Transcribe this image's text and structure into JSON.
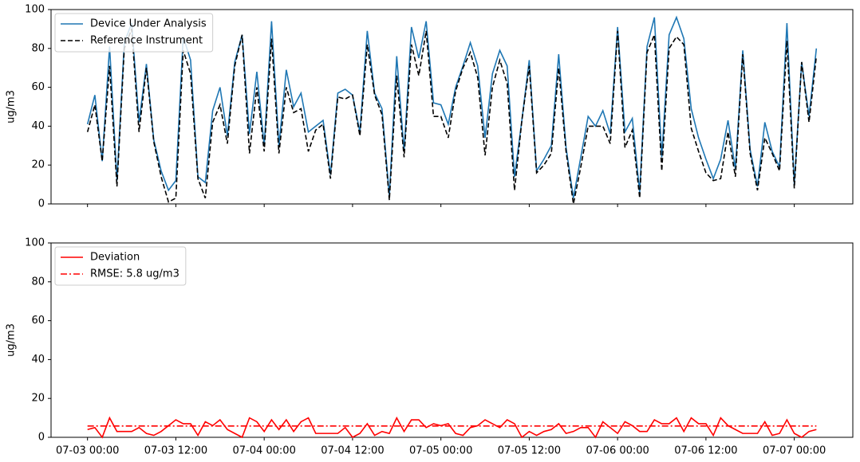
{
  "chart_data": [
    {
      "type": "line",
      "ylabel": "ug/m3",
      "ylim": [
        0,
        100
      ],
      "yticks": [
        0,
        20,
        40,
        60,
        80,
        100
      ],
      "legend": "upper left",
      "x": [
        "07-03 00:00",
        "07-03 01:00",
        "07-03 02:00",
        "07-03 03:00",
        "07-03 04:00",
        "07-03 05:00",
        "07-03 06:00",
        "07-03 07:00",
        "07-03 08:00",
        "07-03 09:00",
        "07-03 10:00",
        "07-03 11:00",
        "07-03 12:00",
        "07-03 13:00",
        "07-03 14:00",
        "07-03 15:00",
        "07-03 16:00",
        "07-03 17:00",
        "07-03 18:00",
        "07-03 19:00",
        "07-03 20:00",
        "07-03 21:00",
        "07-03 22:00",
        "07-03 23:00",
        "07-04 00:00",
        "07-04 01:00",
        "07-04 02:00",
        "07-04 03:00",
        "07-04 04:00",
        "07-04 05:00",
        "07-04 06:00",
        "07-04 07:00",
        "07-04 08:00",
        "07-04 09:00",
        "07-04 10:00",
        "07-04 11:00",
        "07-04 12:00",
        "07-04 13:00",
        "07-04 14:00",
        "07-04 15:00",
        "07-04 16:00",
        "07-04 17:00",
        "07-04 18:00",
        "07-04 19:00",
        "07-04 20:00",
        "07-04 21:00",
        "07-04 22:00",
        "07-04 23:00",
        "07-05 00:00",
        "07-05 01:00",
        "07-05 02:00",
        "07-05 03:00",
        "07-05 04:00",
        "07-05 05:00",
        "07-05 06:00",
        "07-05 07:00",
        "07-05 08:00",
        "07-05 09:00",
        "07-05 10:00",
        "07-05 11:00",
        "07-05 12:00",
        "07-05 13:00",
        "07-05 14:00",
        "07-05 15:00",
        "07-05 16:00",
        "07-05 17:00",
        "07-05 18:00",
        "07-05 19:00",
        "07-05 20:00",
        "07-05 21:00",
        "07-05 22:00",
        "07-05 23:00",
        "07-06 00:00",
        "07-06 01:00",
        "07-06 02:00",
        "07-06 03:00",
        "07-06 04:00",
        "07-06 05:00",
        "07-06 06:00",
        "07-06 07:00",
        "07-06 08:00",
        "07-06 09:00",
        "07-06 10:00",
        "07-06 11:00",
        "07-06 12:00",
        "07-06 13:00",
        "07-06 14:00",
        "07-06 15:00",
        "07-06 16:00",
        "07-06 17:00",
        "07-06 18:00",
        "07-06 19:00",
        "07-06 20:00",
        "07-06 21:00",
        "07-06 22:00",
        "07-06 23:00",
        "07-07 00:00",
        "07-07 01:00",
        "07-07 02:00",
        "07-07 03:00"
      ],
      "series": [
        {
          "name": "Device Under Analysis",
          "color": "#1f77b4",
          "dash": "solid",
          "values": [
            41,
            56,
            22,
            81,
            12,
            83,
            93,
            42,
            72,
            33,
            17,
            7,
            12,
            86,
            74,
            14,
            11,
            48,
            60,
            35,
            73,
            87,
            36,
            68,
            30,
            94,
            30,
            69,
            50,
            57,
            37,
            40,
            43,
            15,
            57,
            59,
            56,
            37,
            89,
            57,
            49,
            4,
            76,
            27,
            91,
            75,
            94,
            52,
            51,
            41,
            60,
            71,
            83,
            71,
            34,
            67,
            79,
            71,
            14,
            43,
            74,
            17,
            23,
            30,
            77,
            29,
            3,
            24,
            45,
            40,
            48,
            36,
            91,
            37,
            44,
            6,
            81,
            96,
            24,
            87,
            96,
            85,
            49,
            34,
            23,
            13,
            23,
            43,
            18,
            79,
            28,
            9,
            42,
            27,
            19,
            93,
            10,
            73,
            45,
            80
          ]
        },
        {
          "name": "Reference Instrument",
          "color": "#000000",
          "dash": "dashed",
          "values": [
            37,
            51,
            22,
            71,
            9,
            80,
            90,
            37,
            70,
            32,
            14,
            1,
            3,
            79,
            67,
            13,
            3,
            42,
            51,
            31,
            71,
            87,
            26,
            60,
            27,
            85,
            26,
            60,
            47,
            49,
            27,
            38,
            41,
            13,
            55,
            54,
            56,
            35,
            82,
            56,
            46,
            2,
            66,
            24,
            82,
            66,
            89,
            45,
            45,
            34,
            58,
            70,
            78,
            65,
            25,
            60,
            74,
            62,
            7,
            43,
            71,
            16,
            20,
            26,
            70,
            27,
            0,
            19,
            40,
            40,
            40,
            31,
            89,
            29,
            38,
            3,
            78,
            87,
            17,
            80,
            86,
            82,
            39,
            27,
            16,
            12,
            13,
            37,
            14,
            77,
            26,
            7,
            34,
            26,
            17,
            84,
            8,
            73,
            42,
            76
          ]
        }
      ]
    },
    {
      "type": "line",
      "ylabel": "ug/m3",
      "ylim": [
        0,
        100
      ],
      "yticks": [
        0,
        20,
        40,
        60,
        80,
        100
      ],
      "legend": "upper left",
      "x": [
        "07-03 00:00",
        "07-03 01:00",
        "07-03 02:00",
        "07-03 03:00",
        "07-03 04:00",
        "07-03 05:00",
        "07-03 06:00",
        "07-03 07:00",
        "07-03 08:00",
        "07-03 09:00",
        "07-03 10:00",
        "07-03 11:00",
        "07-03 12:00",
        "07-03 13:00",
        "07-03 14:00",
        "07-03 15:00",
        "07-03 16:00",
        "07-03 17:00",
        "07-03 18:00",
        "07-03 19:00",
        "07-03 20:00",
        "07-03 21:00",
        "07-03 22:00",
        "07-03 23:00",
        "07-04 00:00",
        "07-04 01:00",
        "07-04 02:00",
        "07-04 03:00",
        "07-04 04:00",
        "07-04 05:00",
        "07-04 06:00",
        "07-04 07:00",
        "07-04 08:00",
        "07-04 09:00",
        "07-04 10:00",
        "07-04 11:00",
        "07-04 12:00",
        "07-04 13:00",
        "07-04 14:00",
        "07-04 15:00",
        "07-04 16:00",
        "07-04 17:00",
        "07-04 18:00",
        "07-04 19:00",
        "07-04 20:00",
        "07-04 21:00",
        "07-04 22:00",
        "07-04 23:00",
        "07-05 00:00",
        "07-05 01:00",
        "07-05 02:00",
        "07-05 03:00",
        "07-05 04:00",
        "07-05 05:00",
        "07-05 06:00",
        "07-05 07:00",
        "07-05 08:00",
        "07-05 09:00",
        "07-05 10:00",
        "07-05 11:00",
        "07-05 12:00",
        "07-05 13:00",
        "07-05 14:00",
        "07-05 15:00",
        "07-05 16:00",
        "07-05 17:00",
        "07-05 18:00",
        "07-05 19:00",
        "07-05 20:00",
        "07-05 21:00",
        "07-05 22:00",
        "07-05 23:00",
        "07-06 00:00",
        "07-06 01:00",
        "07-06 02:00",
        "07-06 03:00",
        "07-06 04:00",
        "07-06 05:00",
        "07-06 06:00",
        "07-06 07:00",
        "07-06 08:00",
        "07-06 09:00",
        "07-06 10:00",
        "07-06 11:00",
        "07-06 12:00",
        "07-06 13:00",
        "07-06 14:00",
        "07-06 15:00",
        "07-06 16:00",
        "07-06 17:00",
        "07-06 18:00",
        "07-06 19:00",
        "07-06 20:00",
        "07-06 21:00",
        "07-06 22:00",
        "07-06 23:00",
        "07-07 00:00",
        "07-07 01:00",
        "07-07 02:00",
        "07-07 03:00"
      ],
      "xticks": [
        "07-03 00:00",
        "07-03 12:00",
        "07-04 00:00",
        "07-04 12:00",
        "07-05 00:00",
        "07-05 12:00",
        "07-06 00:00",
        "07-06 12:00",
        "07-07 00:00"
      ],
      "series": [
        {
          "name": "Deviation",
          "color": "#ff0000",
          "dash": "solid",
          "values": [
            4,
            5,
            0,
            10,
            3,
            3,
            3,
            5,
            2,
            1,
            3,
            6,
            9,
            7,
            7,
            1,
            8,
            6,
            9,
            4,
            2,
            0,
            10,
            8,
            3,
            9,
            4,
            9,
            3,
            8,
            10,
            2,
            2,
            2,
            2,
            5,
            0,
            2,
            7,
            1,
            3,
            2,
            10,
            3,
            9,
            9,
            5,
            7,
            6,
            7,
            2,
            1,
            5,
            6,
            9,
            7,
            5,
            9,
            7,
            0,
            3,
            1,
            3,
            4,
            7,
            2,
            3,
            5,
            5,
            0,
            8,
            5,
            2,
            8,
            6,
            3,
            3,
            9,
            7,
            7,
            10,
            3,
            10,
            7,
            7,
            1,
            10,
            6,
            4,
            2,
            2,
            2,
            8,
            1,
            2,
            9,
            2,
            0,
            3,
            4
          ]
        }
      ],
      "hline": {
        "name": "RMSE: 5.8 ug/m3",
        "value": 5.8,
        "color": "#ff0000",
        "dash": "dashdot"
      }
    }
  ]
}
